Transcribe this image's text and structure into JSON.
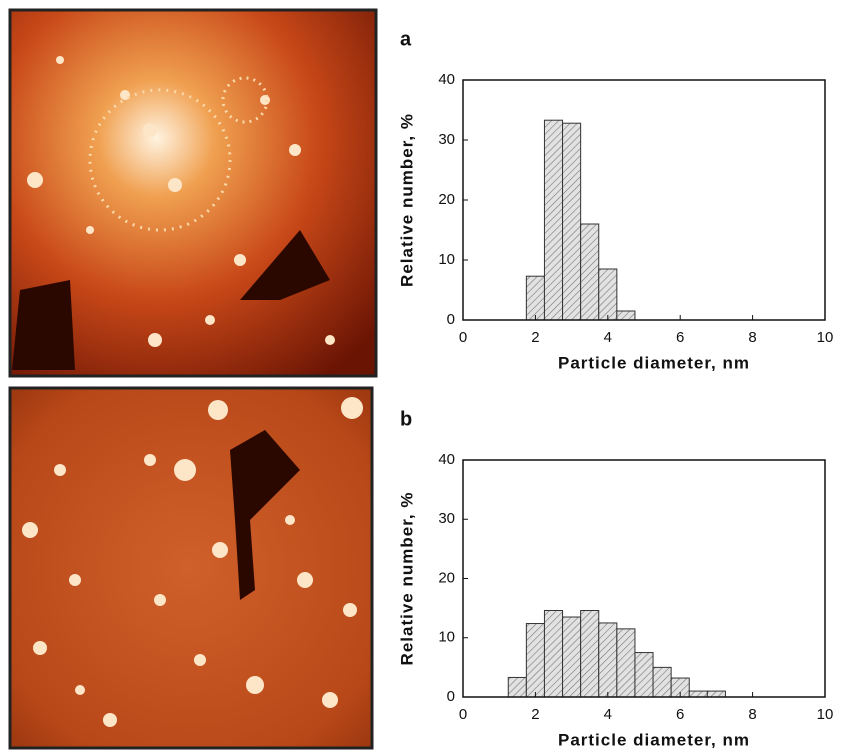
{
  "chart_data": [
    {
      "type": "histogram",
      "title": "a",
      "x_label": "Particle diameter, nm",
      "y_label": "Relative number, %",
      "bins": [
        1.75,
        2.25,
        2.75,
        3.25,
        3.75,
        4.25,
        4.75
      ],
      "counts": [
        7.3,
        33.3,
        32.8,
        16,
        8.5,
        1.5
      ],
      "color": "#d8d8d8",
      "xlim": [
        0,
        10
      ],
      "xticks": [
        0,
        2,
        4,
        6,
        8,
        10
      ],
      "ylim": [
        0,
        40
      ],
      "yticks": [
        0,
        10,
        20,
        30,
        40
      ]
    },
    {
      "type": "histogram",
      "title": "b",
      "x_label": "Particle diameter, nm",
      "y_label": "Relative number, %",
      "bins": [
        1.25,
        1.75,
        2.25,
        2.75,
        3.25,
        3.75,
        4.25,
        4.75,
        5.25,
        5.75,
        6.25,
        6.75,
        7.25
      ],
      "counts": [
        3.3,
        12.4,
        14.6,
        13.5,
        14.6,
        12.5,
        11.5,
        7.5,
        5,
        3.2,
        1,
        1
      ],
      "color": "#d8d8d8",
      "xlim": [
        0,
        10
      ],
      "xticks": [
        0,
        2,
        4,
        6,
        8,
        10
      ],
      "ylim": [
        0,
        40
      ],
      "yticks": [
        0,
        10,
        20,
        30,
        40
      ]
    }
  ]
}
